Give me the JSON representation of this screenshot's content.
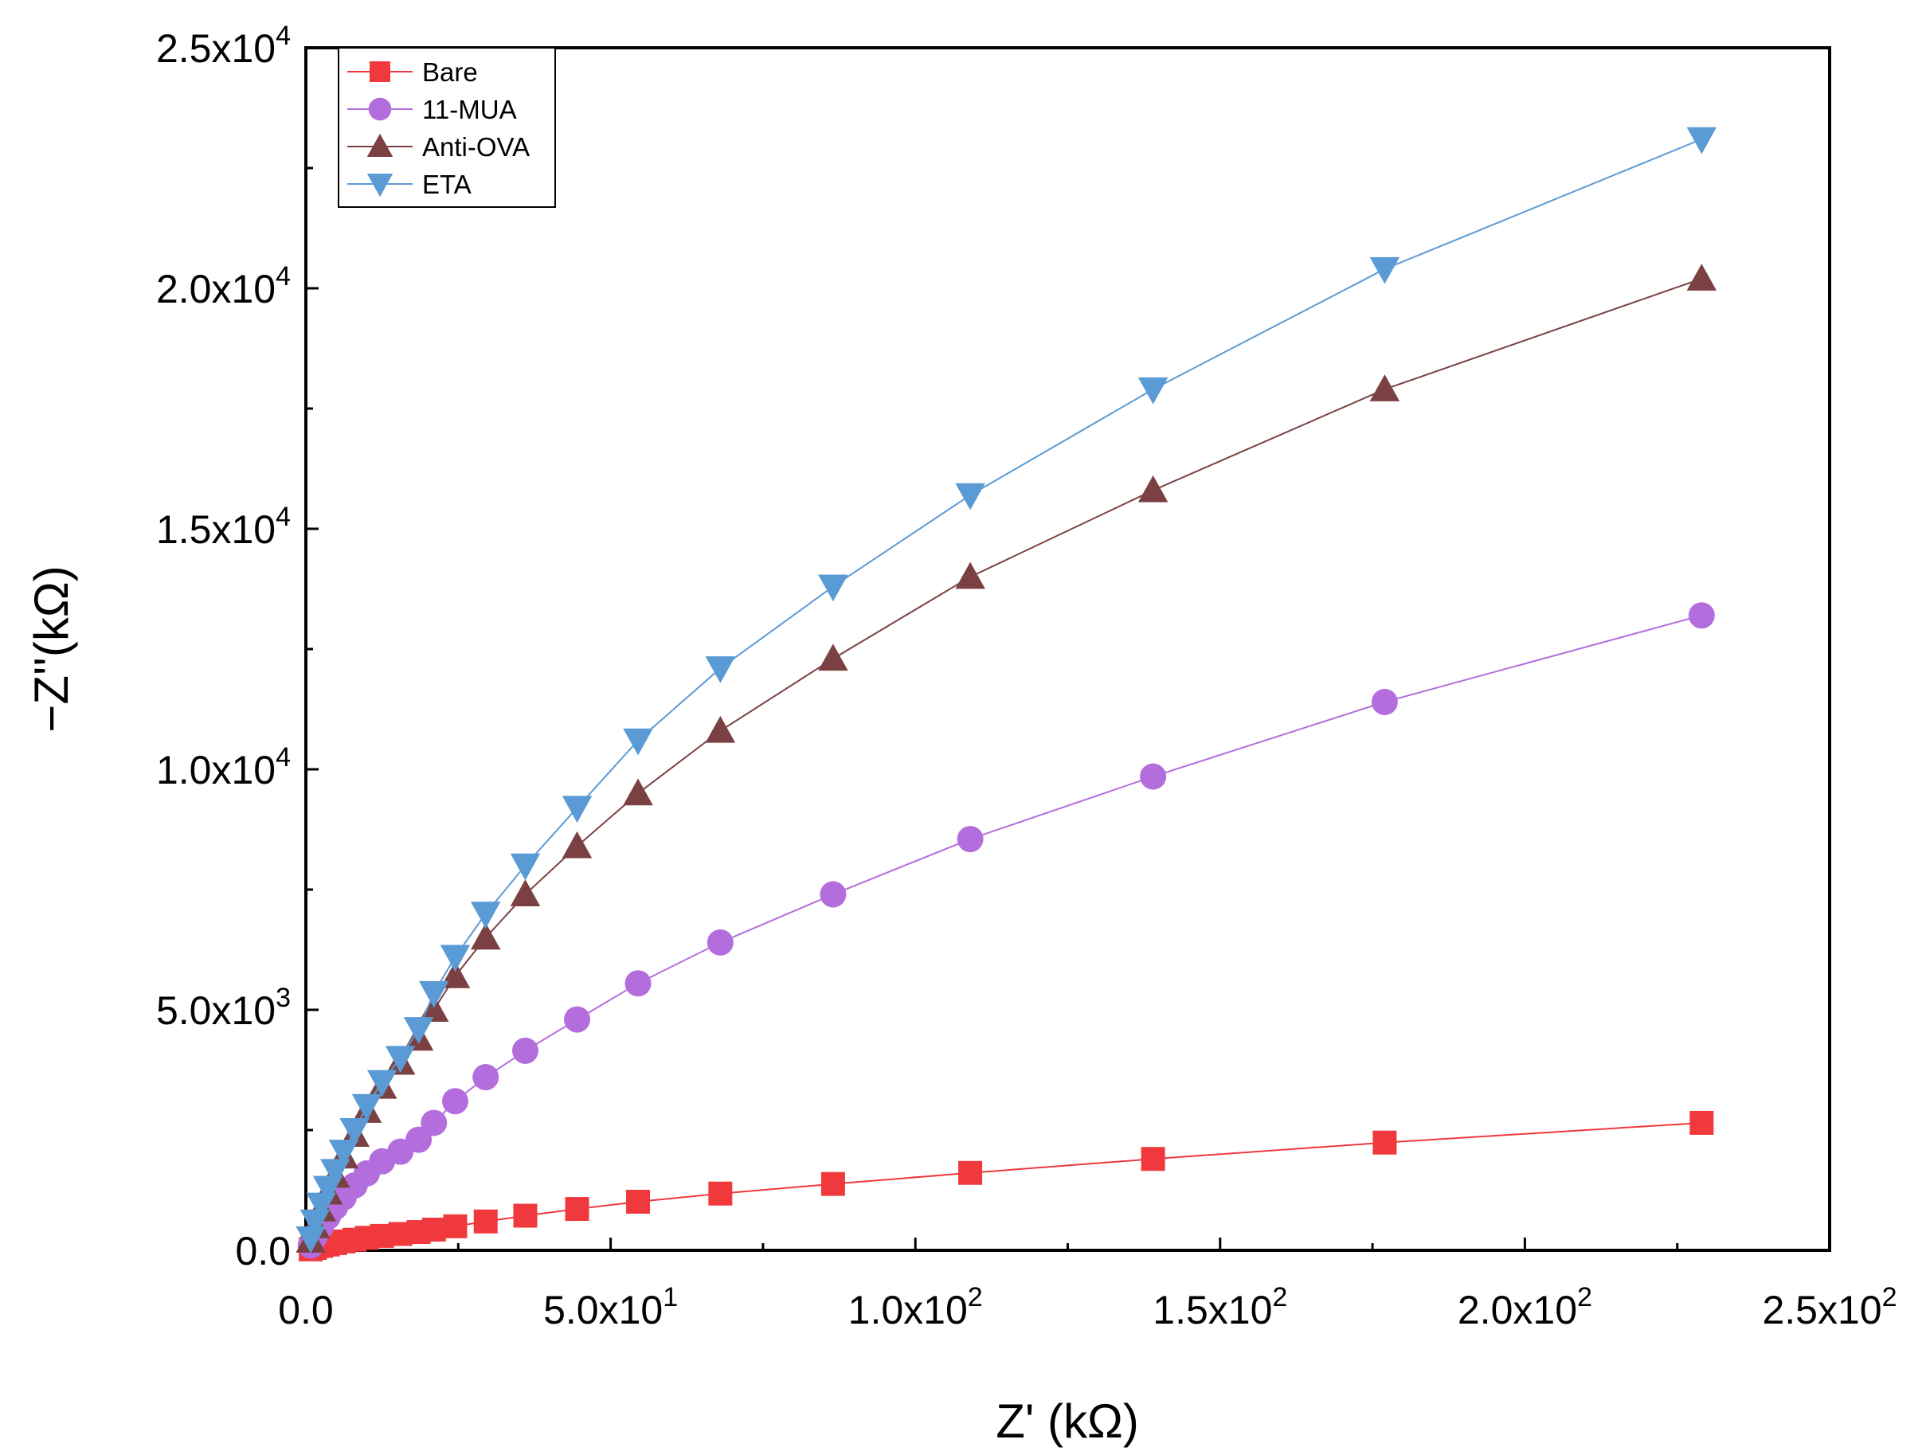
{
  "chart_data": {
    "type": "line",
    "xlabel": "Z' (kΩ)",
    "ylabel": "−Z''(kΩ)",
    "xlim": [
      0,
      250
    ],
    "ylim": [
      0,
      25000
    ],
    "x_ticks": [
      {
        "value": 0,
        "mant": "0.0",
        "exp": ""
      },
      {
        "value": 50,
        "mant": "5.0x10",
        "exp": "1"
      },
      {
        "value": 100,
        "mant": "1.0x10",
        "exp": "2"
      },
      {
        "value": 150,
        "mant": "1.5x10",
        "exp": "2"
      },
      {
        "value": 200,
        "mant": "2.0x10",
        "exp": "2"
      },
      {
        "value": 250,
        "mant": "2.5x10",
        "exp": "2"
      }
    ],
    "y_ticks": [
      {
        "value": 0,
        "mant": "0.0",
        "exp": ""
      },
      {
        "value": 5000,
        "mant": "5.0x10",
        "exp": "3"
      },
      {
        "value": 10000,
        "mant": "1.0x10",
        "exp": "4"
      },
      {
        "value": 15000,
        "mant": "1.5x10",
        "exp": "4"
      },
      {
        "value": 20000,
        "mant": "2.0x10",
        "exp": "4"
      },
      {
        "value": 25000,
        "mant": "2.5x10",
        "exp": "4"
      }
    ],
    "legend_position": "top-left",
    "series": [
      {
        "name": "Bare",
        "color": "#f0393c",
        "marker": "square",
        "x": [
          0.8,
          1.5,
          2.5,
          3.6,
          4.8,
          6.2,
          8.0,
          10.0,
          12.5,
          15.5,
          18.5,
          21.0,
          24.5,
          29.5,
          36.0,
          44.5,
          54.5,
          68.0,
          86.5,
          109.0,
          139.0,
          177.0,
          229.0
        ],
        "y": [
          20,
          50,
          90,
          120,
          150,
          185,
          220,
          260,
          300,
          340,
          380,
          430,
          500,
          600,
          720,
          860,
          1010,
          1180,
          1380,
          1610,
          1900,
          2240,
          2650
        ]
      },
      {
        "name": "11-MUA",
        "color": "#b36ddd",
        "marker": "circle",
        "x": [
          0.8,
          1.5,
          2.5,
          3.6,
          4.8,
          6.2,
          8.0,
          10.0,
          12.5,
          15.5,
          18.5,
          21.0,
          24.5,
          29.5,
          36.0,
          44.5,
          54.5,
          68.0,
          86.5,
          109.0,
          139.0,
          177.0,
          229.0
        ],
        "y": [
          100,
          300,
          500,
          700,
          900,
          1100,
          1350,
          1600,
          1850,
          2050,
          2300,
          2650,
          3100,
          3600,
          4150,
          4800,
          5550,
          6400,
          7400,
          8550,
          9850,
          11400,
          13200
        ]
      },
      {
        "name": "Anti-OVA",
        "color": "#7b4142",
        "marker": "triangle-up",
        "x": [
          0.8,
          1.5,
          2.5,
          3.6,
          4.8,
          6.2,
          8.0,
          10.0,
          12.5,
          15.5,
          18.5,
          21.0,
          24.5,
          29.5,
          36.0,
          44.5,
          54.5,
          68.0,
          86.5,
          109.0,
          139.0,
          177.0,
          229.0
        ],
        "y": [
          200,
          500,
          850,
          1200,
          1550,
          1950,
          2400,
          2900,
          3400,
          3900,
          4400,
          5000,
          5700,
          6500,
          7400,
          8400,
          9500,
          10800,
          12300,
          14000,
          15800,
          17900,
          20200
        ]
      },
      {
        "name": "ETA",
        "color": "#5b9bd5",
        "marker": "triangle-down",
        "x": [
          0.8,
          1.5,
          2.5,
          3.6,
          4.8,
          6.2,
          8.0,
          10.0,
          12.5,
          15.5,
          18.5,
          21.0,
          24.5,
          29.5,
          36.0,
          44.5,
          54.5,
          68.0,
          86.5,
          109.0,
          139.0,
          177.0,
          229.0
        ],
        "y": [
          250,
          600,
          950,
          1300,
          1650,
          2050,
          2500,
          3000,
          3500,
          4000,
          4600,
          5350,
          6100,
          7000,
          8000,
          9200,
          10600,
          12100,
          13800,
          15700,
          17900,
          20400,
          23100
        ]
      }
    ]
  }
}
